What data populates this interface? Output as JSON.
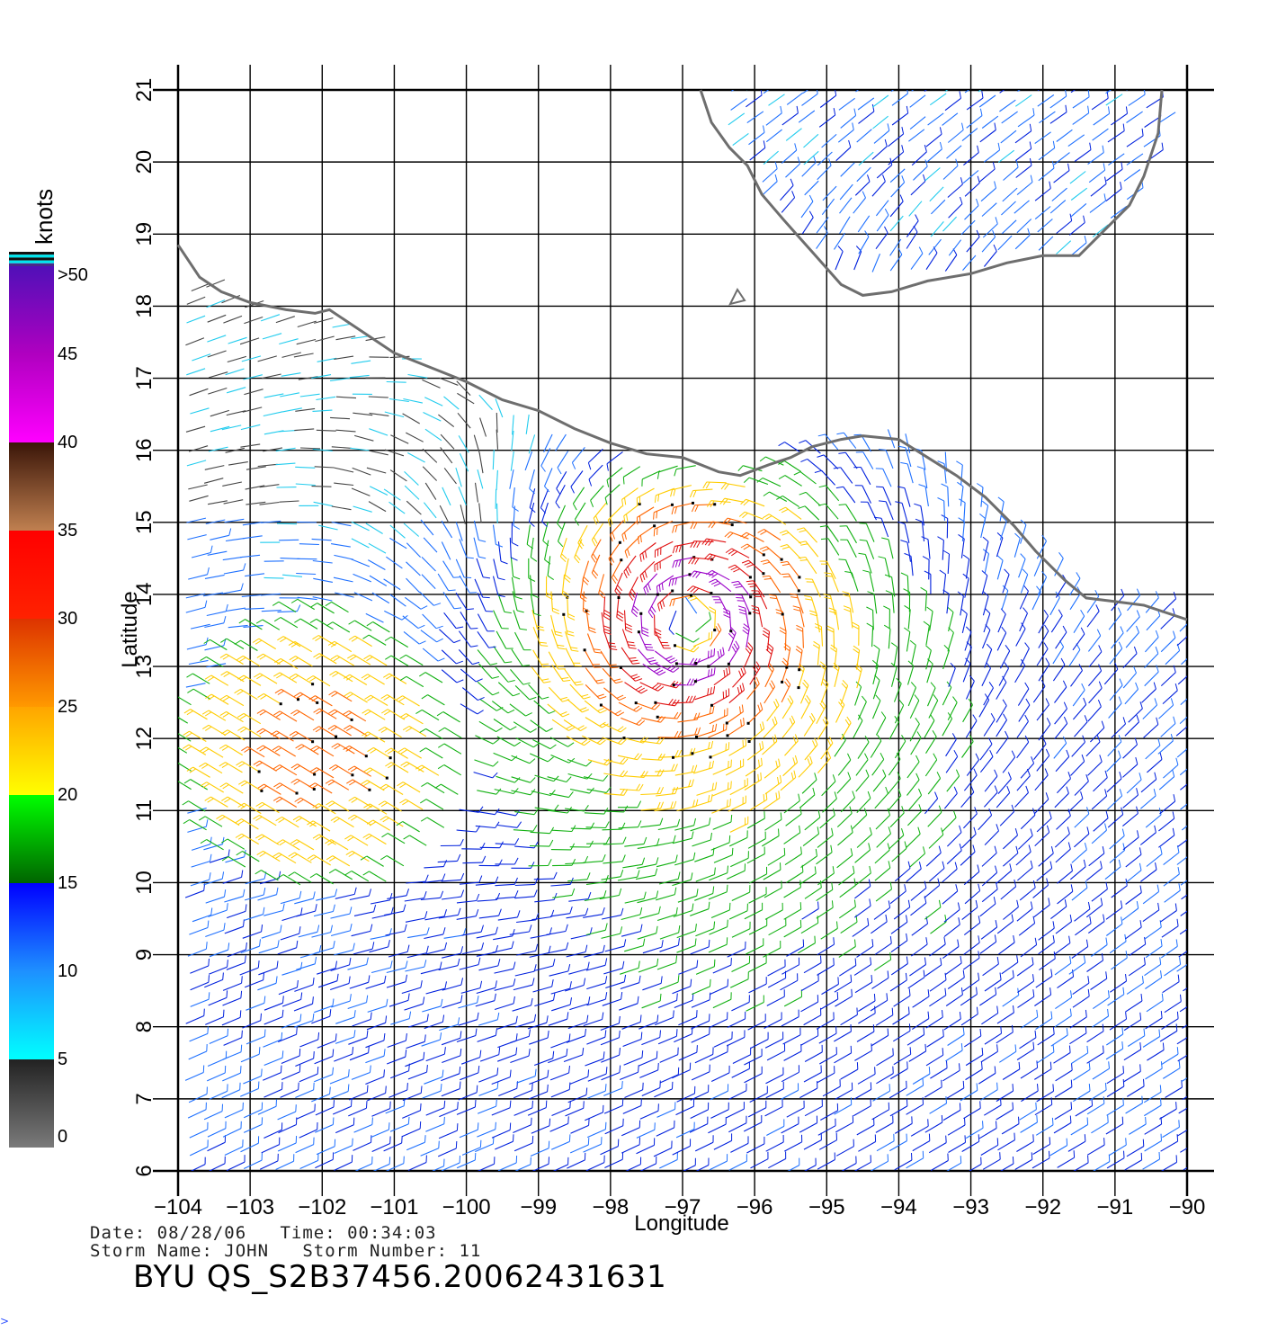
{
  "map": {
    "x_axis_label": "Longitude",
    "y_axis_label": "Latitude",
    "lon_ticks": [
      -104,
      -103,
      -102,
      -101,
      -100,
      -99,
      -98,
      -97,
      -96,
      -95,
      -94,
      -93,
      -92,
      -91,
      -90
    ],
    "lat_ticks": [
      6,
      7,
      8,
      9,
      10,
      11,
      12,
      13,
      14,
      15,
      16,
      17,
      18,
      19,
      20,
      21
    ],
    "lon_range": [
      -104,
      -90
    ],
    "lat_range": [
      6,
      21
    ],
    "storm_center": {
      "lon": -96.9,
      "lat": 13.6
    },
    "storm_radius_deg": 2.4,
    "grid": true
  },
  "colorbar": {
    "title": "knots",
    "labels": [
      "0",
      "5",
      "10",
      "15",
      "20",
      "25",
      "30",
      "35",
      "40",
      "45",
      ">50"
    ],
    "bands": [
      {
        "from": "#7a7a7a",
        "to": "#222222",
        "min": 0,
        "max": 5
      },
      {
        "from": "#00ffff",
        "to": "#1e90ff",
        "min": 5,
        "max": 10
      },
      {
        "from": "#1e90ff",
        "to": "#0000ff",
        "min": 10,
        "max": 15
      },
      {
        "from": "#006400",
        "to": "#00ff00",
        "min": 15,
        "max": 20
      },
      {
        "from": "#ffff00",
        "to": "#ffa500",
        "min": 20,
        "max": 25
      },
      {
        "from": "#ff9900",
        "to": "#dd3300",
        "min": 25,
        "max": 30
      },
      {
        "from": "#ff2200",
        "to": "#ff0000",
        "min": 30,
        "max": 35
      },
      {
        "from": "#c08050",
        "to": "#3a1508",
        "min": 35,
        "max": 40
      },
      {
        "from": "#ff00ff",
        "to": "#b000c0",
        "min": 40,
        "max": 45
      },
      {
        "from": "#b000c0",
        "to": "#5010b8",
        "min": 45,
        "max": 50
      }
    ],
    "top_stripes": [
      "#111111",
      "#00e5ee",
      "#111111",
      "#00e5ee",
      "#4a2a88"
    ]
  },
  "colors": {
    "coastline": "#6e6e6e",
    "grid": "#000000"
  },
  "footer": {
    "date_line": "Date: 08/28/06   Time: 00:34:03",
    "storm_line": "Storm Name: JOHN   Storm Number: 11",
    "title": "BYU QS_S2B37456.20062431631",
    "corner": ">"
  }
}
